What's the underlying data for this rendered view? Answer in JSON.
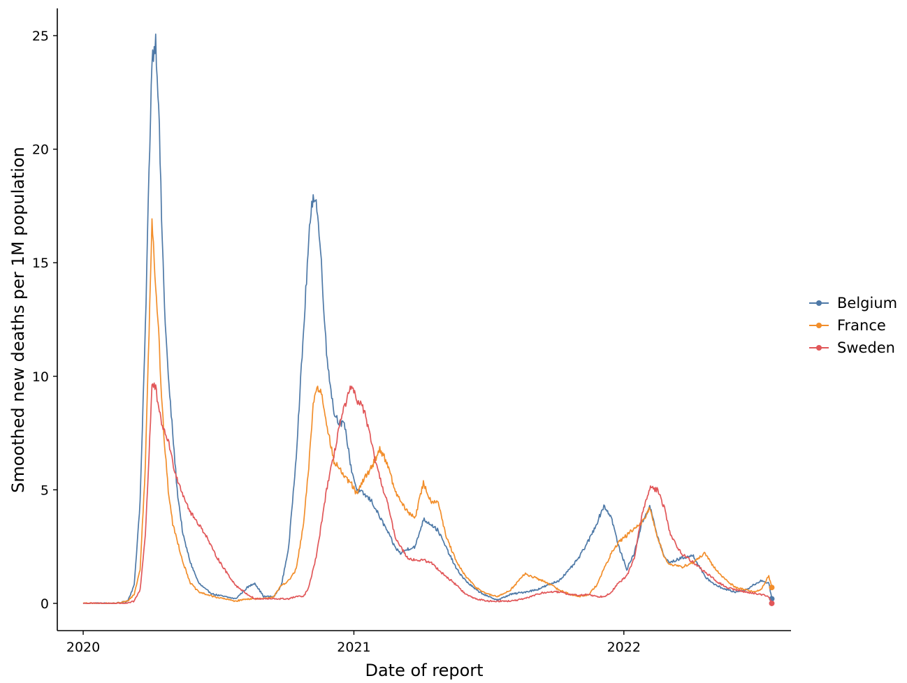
{
  "chart_data": {
    "type": "line",
    "title": "",
    "xlabel": "Date of report",
    "ylabel": "Smoothed new deaths per 1M population",
    "x_ticks": [
      "2020",
      "2021",
      "2022"
    ],
    "y_ticks": [
      "0",
      "5",
      "10",
      "15",
      "20",
      "25"
    ],
    "ylim": [
      -1.2,
      26.2
    ],
    "xlim": [
      "2019-11-27",
      "2022-08-15"
    ],
    "grid": false,
    "legend_position": "right",
    "x": [
      "2020-01-01",
      "2020-02-15",
      "2020-03-01",
      "2020-03-10",
      "2020-03-18",
      "2020-03-25",
      "2020-03-30",
      "2020-04-03",
      "2020-04-08",
      "2020-04-12",
      "2020-04-16",
      "2020-04-20",
      "2020-04-25",
      "2020-05-01",
      "2020-05-07",
      "2020-05-15",
      "2020-05-25",
      "2020-06-05",
      "2020-06-15",
      "2020-06-25",
      "2020-07-10",
      "2020-07-25",
      "2020-08-10",
      "2020-08-20",
      "2020-09-01",
      "2020-09-15",
      "2020-09-25",
      "2020-10-05",
      "2020-10-15",
      "2020-10-25",
      "2020-11-01",
      "2020-11-07",
      "2020-11-12",
      "2020-11-18",
      "2020-11-25",
      "2020-12-05",
      "2020-12-12",
      "2020-12-20",
      "2020-12-28",
      "2021-01-05",
      "2021-01-15",
      "2021-01-25",
      "2021-02-05",
      "2021-02-15",
      "2021-02-25",
      "2021-03-05",
      "2021-03-15",
      "2021-03-25",
      "2021-04-05",
      "2021-04-15",
      "2021-04-25",
      "2021-05-05",
      "2021-05-20",
      "2021-06-01",
      "2021-06-15",
      "2021-07-01",
      "2021-07-15",
      "2021-08-01",
      "2021-08-20",
      "2021-09-05",
      "2021-09-20",
      "2021-10-05",
      "2021-10-20",
      "2021-11-01",
      "2021-11-15",
      "2021-11-25",
      "2021-12-05",
      "2021-12-15",
      "2021-12-25",
      "2022-01-05",
      "2022-01-15",
      "2022-01-25",
      "2022-02-05",
      "2022-02-15",
      "2022-02-25",
      "2022-03-05",
      "2022-03-20",
      "2022-04-05",
      "2022-04-20",
      "2022-05-05",
      "2022-05-20",
      "2022-06-01",
      "2022-06-15",
      "2022-06-25",
      "2022-07-05",
      "2022-07-16",
      "2022-07-20"
    ],
    "series": [
      {
        "name": "Belgium",
        "color": "#4e79a7",
        "values": [
          0,
          0,
          0.1,
          0.8,
          4.5,
          12,
          19,
          24,
          24.8,
          22,
          17,
          13,
          10,
          7.5,
          5,
          3,
          1.8,
          0.9,
          0.6,
          0.4,
          0.3,
          0.2,
          0.7,
          0.9,
          0.3,
          0.3,
          0.8,
          2.5,
          6.5,
          12,
          16,
          18.1,
          17.5,
          15,
          11,
          8.4,
          8,
          7.8,
          6,
          5,
          4.8,
          4.5,
          3.8,
          3.2,
          2.5,
          2.2,
          2.4,
          2.5,
          3.7,
          3.5,
          3.2,
          2.5,
          1.5,
          1.0,
          0.6,
          0.3,
          0.15,
          0.4,
          0.5,
          0.6,
          0.8,
          1.0,
          1.5,
          2.0,
          2.8,
          3.5,
          4.3,
          3.8,
          2.5,
          1.5,
          2.2,
          3.5,
          4.3,
          3.0,
          2.0,
          1.8,
          2.0,
          2.1,
          1.2,
          0.8,
          0.6,
          0.5,
          0.6,
          0.8,
          1.0,
          0.9,
          0.2
        ]
      },
      {
        "name": "France",
        "color": "#f28e2b",
        "values": [
          0,
          0,
          0.1,
          0.4,
          1.5,
          6,
          12,
          17,
          14,
          12,
          9,
          7,
          5,
          3.5,
          2.8,
          1.8,
          0.9,
          0.5,
          0.4,
          0.3,
          0.2,
          0.1,
          0.2,
          0.2,
          0.2,
          0.3,
          0.8,
          1.0,
          1.5,
          3.5,
          6,
          8.8,
          9.5,
          9.3,
          8.0,
          6.2,
          6.0,
          5.5,
          5.3,
          4.8,
          5.5,
          6.0,
          6.8,
          6.2,
          5.0,
          4.5,
          4.0,
          3.8,
          5.3,
          4.5,
          4.5,
          3.0,
          1.8,
          1.2,
          0.7,
          0.4,
          0.3,
          0.6,
          1.3,
          1.1,
          0.9,
          0.6,
          0.4,
          0.3,
          0.4,
          0.8,
          1.5,
          2.2,
          2.7,
          3.0,
          3.3,
          3.5,
          4.2,
          3.0,
          2.0,
          1.7,
          1.6,
          1.8,
          2.2,
          1.5,
          1.0,
          0.7,
          0.6,
          0.5,
          0.6,
          1.2,
          0.7
        ]
      },
      {
        "name": "Sweden",
        "color": "#e15759",
        "values": [
          0,
          0,
          0,
          0.1,
          0.6,
          3.0,
          6.5,
          9.6,
          9.5,
          8.5,
          8.0,
          7.5,
          7.2,
          6.2,
          5.5,
          4.8,
          4.0,
          3.5,
          3.0,
          2.3,
          1.5,
          0.8,
          0.4,
          0.2,
          0.2,
          0.2,
          0.2,
          0.2,
          0.3,
          0.3,
          0.7,
          1.5,
          2.2,
          3.5,
          5.0,
          6.5,
          7.8,
          8.7,
          9.5,
          9.0,
          8.5,
          7.0,
          5.5,
          4.5,
          3.0,
          2.5,
          2.0,
          1.9,
          1.9,
          1.8,
          1.5,
          1.2,
          0.8,
          0.4,
          0.2,
          0.1,
          0.1,
          0.1,
          0.2,
          0.4,
          0.5,
          0.5,
          0.4,
          0.35,
          0.4,
          0.3,
          0.3,
          0.5,
          0.9,
          1.2,
          2.0,
          3.8,
          5.1,
          5.0,
          4.2,
          3.0,
          2.2,
          1.8,
          1.4,
          1.0,
          0.7,
          0.6,
          0.5,
          0.45,
          0.4,
          0.3,
          0.0
        ]
      }
    ]
  }
}
